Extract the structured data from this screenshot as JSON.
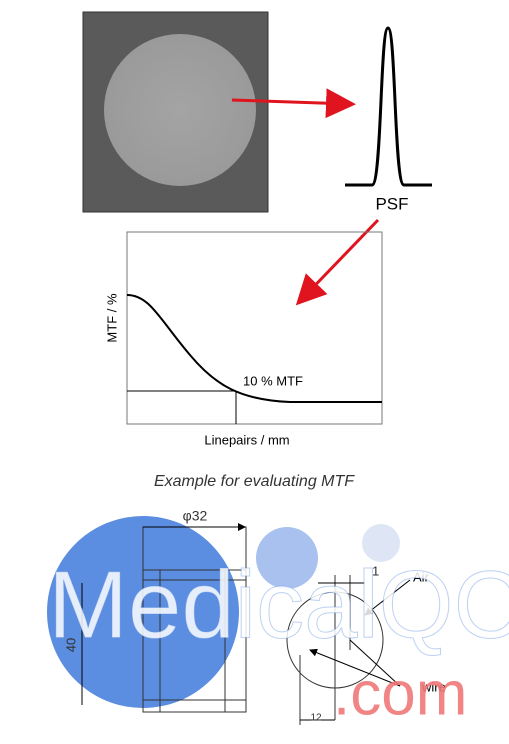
{
  "psf_panel": {
    "label": "PSF"
  },
  "mtf_panel": {
    "y_axis_label": "MTF / %",
    "x_axis_label": "Linepairs / mm",
    "annotation": "10 % MTF"
  },
  "caption": "Example for evaluating MTF",
  "drawing": {
    "diameter": "φ32",
    "height": "40",
    "gap": "1",
    "air_label": "Air",
    "wire_label": "wire",
    "offset": "12"
  },
  "watermark": {
    "main": "MedicalQC",
    "suffix": ".com"
  }
}
